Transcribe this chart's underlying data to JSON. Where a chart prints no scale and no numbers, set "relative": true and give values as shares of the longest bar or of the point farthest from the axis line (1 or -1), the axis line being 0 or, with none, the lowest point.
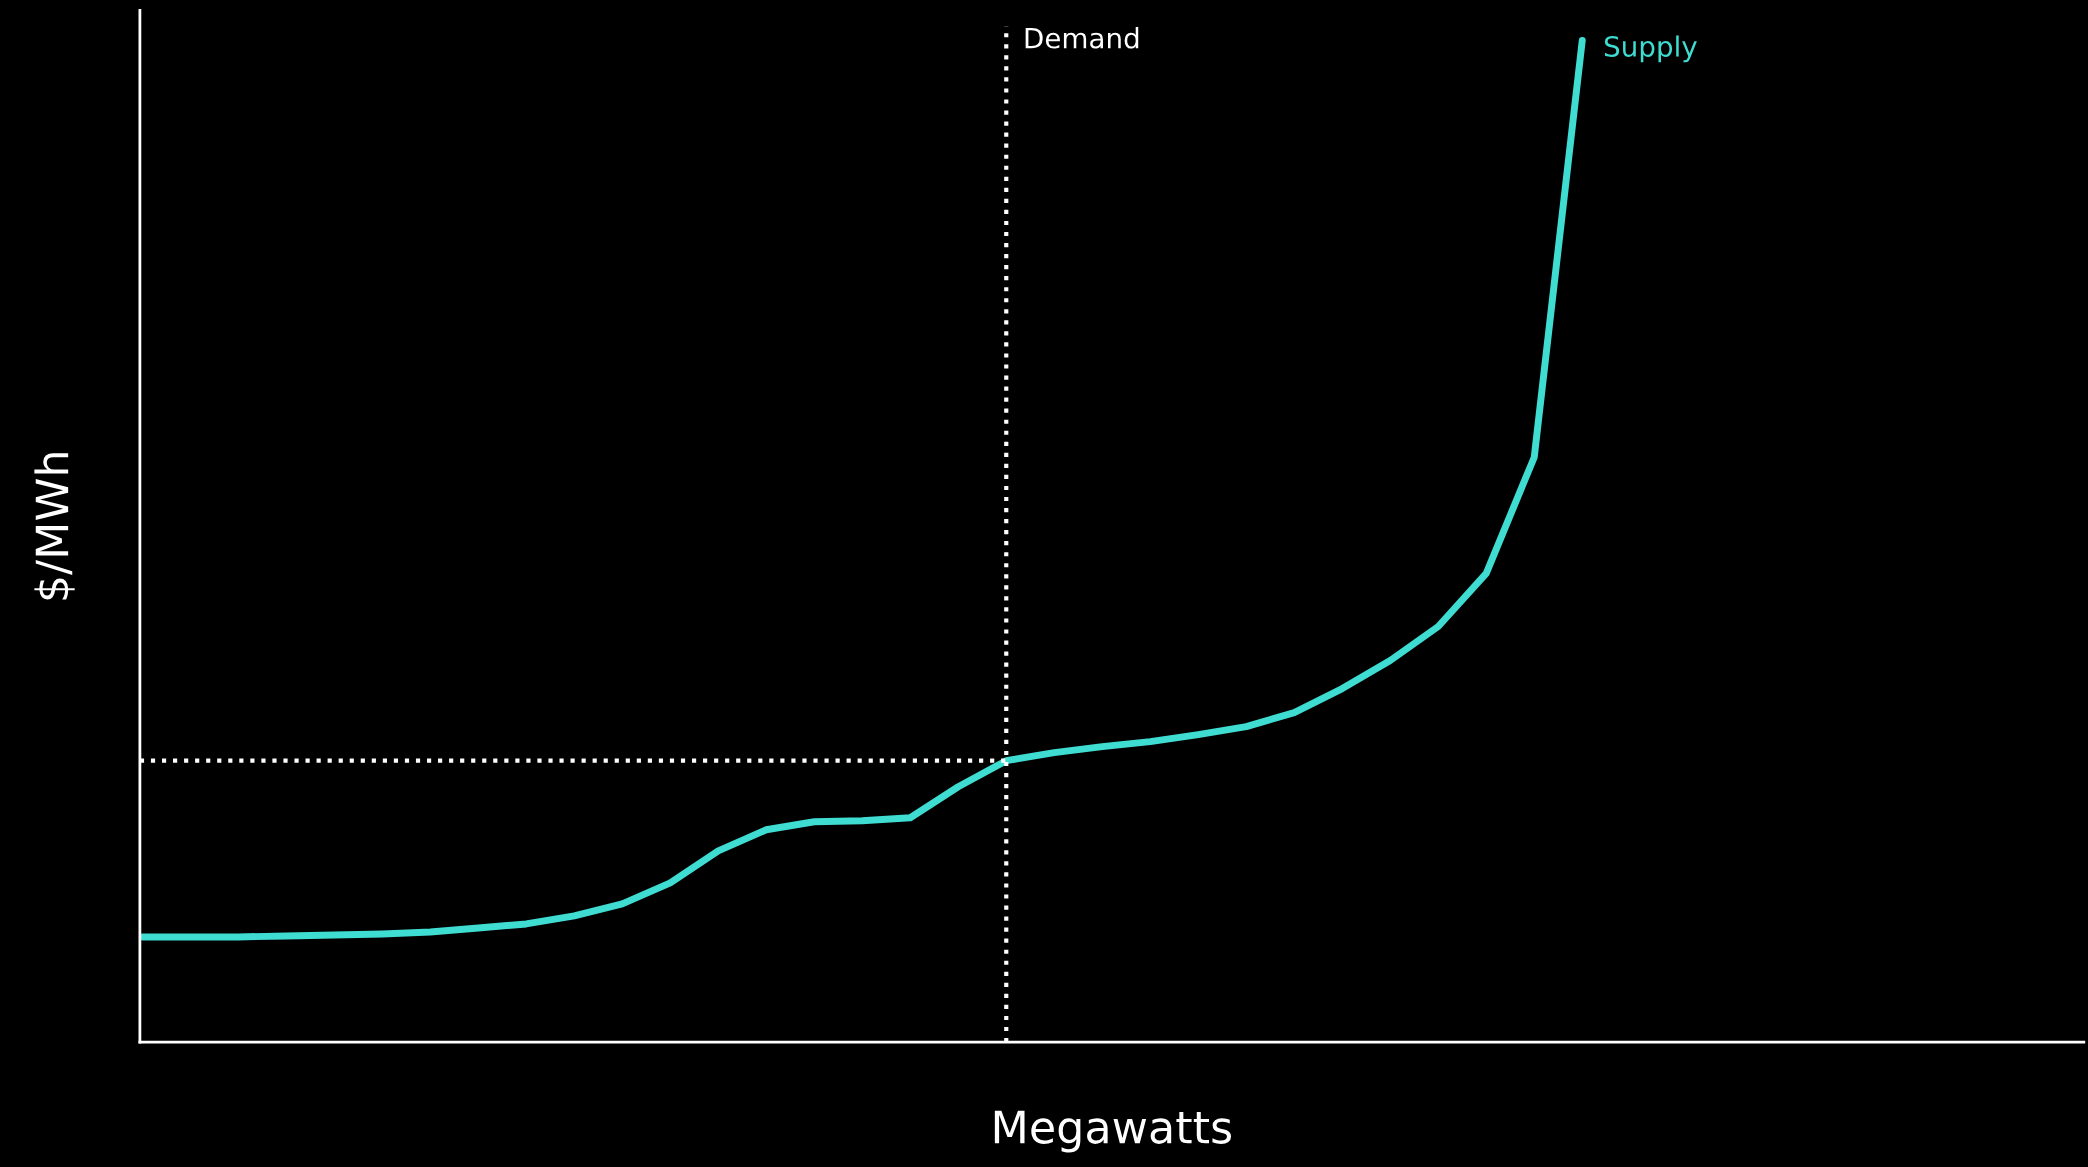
{
  "chart_data": {
    "type": "line",
    "relative": true,
    "xlabel": "Megawatts",
    "ylabel": "$/MWh",
    "legend": false,
    "marker": "none",
    "line_style": "solid",
    "categories": [
      null,
      null,
      null,
      null,
      null,
      null,
      null,
      null,
      null,
      null,
      null,
      null,
      null,
      null,
      null,
      null,
      null,
      null,
      null,
      null,
      null,
      null,
      null,
      null,
      null,
      null,
      null,
      null,
      null,
      null,
      null,
      null,
      null,
      null,
      null,
      null,
      null,
      null,
      null,
      null,
      null
    ],
    "series": [
      {
        "name": "Supply",
        "color": "#3fdcd2",
        "values": [
          0.105,
          0.105,
          0.105,
          0.106,
          0.107,
          0.108,
          0.11,
          0.114,
          0.118,
          0.126,
          0.138,
          0.159,
          0.191,
          0.212,
          0.22,
          0.221,
          0.224,
          0.255,
          0.281,
          0.289,
          0.295,
          0.3,
          0.307,
          0.315,
          0.329,
          0.353,
          0.381,
          0.415,
          0.468,
          0.584,
          1.0,
          null,
          null,
          null,
          null,
          null,
          null,
          null,
          null,
          null,
          null
        ]
      }
    ],
    "ref_lines": [
      {
        "axis": "y",
        "value": 0.281,
        "label": null,
        "color": "#ffffff",
        "line_style": "dotted"
      }
    ],
    "annotations": [
      "Demand"
    ]
  }
}
